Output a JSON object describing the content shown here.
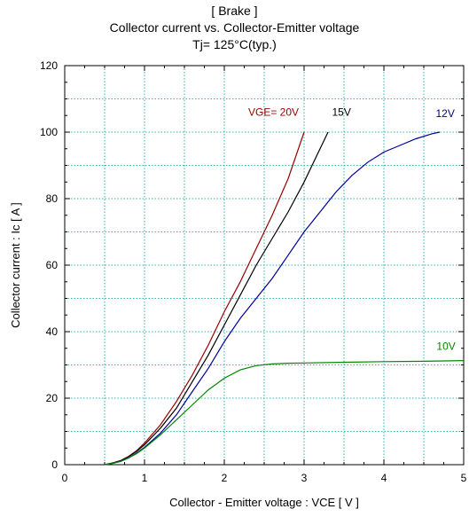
{
  "chart_data": {
    "type": "line",
    "title_lines": [
      "[ Brake ]",
      "Collector current  vs.  Collector-Emitter voltage",
      "Tj= 125°C(typ.)"
    ],
    "xlabel": "Collector - Emitter voltage  :  VCE  [ V ]",
    "ylabel": "Collector current  :  Ic  [ A ]",
    "xlim": [
      0,
      5
    ],
    "ylim": [
      0,
      120
    ],
    "x_ticks": [
      0,
      1,
      2,
      3,
      4,
      5
    ],
    "y_ticks": [
      0,
      20,
      40,
      60,
      80,
      100,
      120
    ],
    "grid": true,
    "series": [
      {
        "name": "VGE= 20V",
        "color": "#990000",
        "points": [
          [
            0.5,
            0
          ],
          [
            0.6,
            0.5
          ],
          [
            0.7,
            1.2
          ],
          [
            0.8,
            2.5
          ],
          [
            0.9,
            4.2
          ],
          [
            1.0,
            6.5
          ],
          [
            1.2,
            12
          ],
          [
            1.4,
            19
          ],
          [
            1.6,
            27
          ],
          [
            1.8,
            36
          ],
          [
            2.0,
            46
          ],
          [
            2.2,
            55
          ],
          [
            2.4,
            65
          ],
          [
            2.6,
            75
          ],
          [
            2.8,
            86
          ],
          [
            3.0,
            100
          ]
        ]
      },
      {
        "name": "15V",
        "color": "#000000",
        "points": [
          [
            0.5,
            0
          ],
          [
            0.6,
            0.5
          ],
          [
            0.7,
            1.2
          ],
          [
            0.8,
            2.4
          ],
          [
            0.9,
            4.0
          ],
          [
            1.0,
            6.0
          ],
          [
            1.2,
            11
          ],
          [
            1.4,
            17
          ],
          [
            1.6,
            25
          ],
          [
            1.8,
            33
          ],
          [
            2.0,
            42
          ],
          [
            2.2,
            51
          ],
          [
            2.4,
            60
          ],
          [
            2.6,
            68
          ],
          [
            2.8,
            76
          ],
          [
            3.0,
            85
          ],
          [
            3.1,
            90
          ],
          [
            3.3,
            100
          ]
        ]
      },
      {
        "name": "12V",
        "color": "#000099",
        "points": [
          [
            0.5,
            0
          ],
          [
            0.6,
            0.4
          ],
          [
            0.7,
            1.0
          ],
          [
            0.8,
            2.0
          ],
          [
            0.9,
            3.5
          ],
          [
            1.0,
            5.2
          ],
          [
            1.2,
            9.5
          ],
          [
            1.4,
            15
          ],
          [
            1.6,
            22
          ],
          [
            1.8,
            29
          ],
          [
            2.0,
            37
          ],
          [
            2.2,
            44
          ],
          [
            2.4,
            50
          ],
          [
            2.6,
            56
          ],
          [
            2.8,
            63
          ],
          [
            3.0,
            70
          ],
          [
            3.2,
            76
          ],
          [
            3.4,
            82
          ],
          [
            3.6,
            87
          ],
          [
            3.8,
            91
          ],
          [
            4.0,
            94
          ],
          [
            4.2,
            96
          ],
          [
            4.4,
            98
          ],
          [
            4.6,
            99.5
          ],
          [
            4.7,
            100
          ]
        ]
      },
      {
        "name": "10V",
        "color": "#008800",
        "points": [
          [
            0.5,
            0
          ],
          [
            0.6,
            0.4
          ],
          [
            0.7,
            1.0
          ],
          [
            0.8,
            2.0
          ],
          [
            0.9,
            3.3
          ],
          [
            1.0,
            5.0
          ],
          [
            1.2,
            9
          ],
          [
            1.4,
            13.5
          ],
          [
            1.6,
            18
          ],
          [
            1.8,
            22.5
          ],
          [
            2.0,
            26
          ],
          [
            2.2,
            28.5
          ],
          [
            2.4,
            29.8
          ],
          [
            2.6,
            30.3
          ],
          [
            2.8,
            30.5
          ],
          [
            3.0,
            30.6
          ],
          [
            3.5,
            30.8
          ],
          [
            4.0,
            31.0
          ],
          [
            4.5,
            31.1
          ],
          [
            5.0,
            31.3
          ]
        ]
      }
    ],
    "series_labels": [
      {
        "text": "VGE= 20V",
        "color": "#990000",
        "x": 2.3,
        "y": 105
      },
      {
        "text": "15V",
        "color": "#000000",
        "x": 3.35,
        "y": 105
      },
      {
        "text": "12V",
        "color": "#000099",
        "x": 4.65,
        "y": 104.5
      },
      {
        "text": "10V",
        "color": "#008800",
        "x": 4.66,
        "y": 34.5
      }
    ]
  }
}
